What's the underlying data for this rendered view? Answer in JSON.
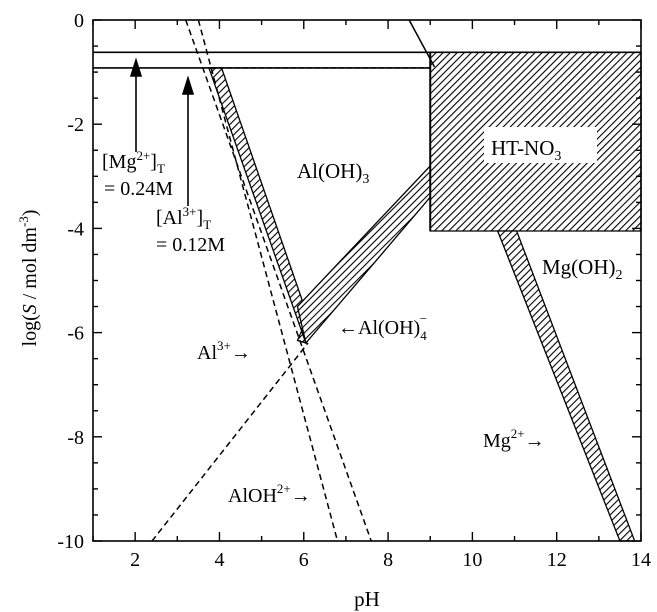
{
  "chart_data": {
    "type": "line",
    "xlabel": "pH",
    "ylabel_parts": [
      "log(",
      "S",
      " / mol dm",
      "-3",
      ")"
    ],
    "xlim": [
      1,
      14
    ],
    "ylim": [
      -10,
      0
    ],
    "x_ticks": [
      2,
      4,
      6,
      8,
      10,
      12,
      14
    ],
    "y_ticks": [
      0,
      -2,
      -4,
      -6,
      -8,
      -10
    ],
    "grid": false,
    "horizontal_lines": [
      {
        "name": "[Mg2+]T",
        "y": -0.62,
        "x_range": [
          1,
          14
        ],
        "style": "solid"
      },
      {
        "name": "[Al3+]T",
        "y": -0.92,
        "x_range": [
          1,
          9
        ],
        "style": "solid"
      }
    ],
    "dashed_segments": [
      {
        "points": [
          [
            3.8,
            -0.92
          ],
          [
            9.0,
            -0.92
          ]
        ]
      }
    ],
    "curves": [
      {
        "name": "Al3+",
        "style": "dashed",
        "points": [
          [
            3.2,
            0
          ],
          [
            7.6,
            -10
          ]
        ]
      },
      {
        "name": "AlOH2+",
        "style": "dashed",
        "points": [
          [
            3.5,
            0
          ],
          [
            6.8,
            -10
          ]
        ]
      },
      {
        "name": "Al(OH)4-",
        "style": "dashed",
        "points": [
          [
            2.4,
            -10
          ],
          [
            6.1,
            -6.2
          ]
        ]
      },
      {
        "name": "Mg2+",
        "style": "solid",
        "points": [
          [
            8.5,
            0
          ],
          [
            9.1,
            -0.9
          ]
        ]
      }
    ],
    "regions": [
      {
        "name": "Al(OH)3 boundary left",
        "fill": "hatch",
        "points": [
          [
            3.75,
            -0.92
          ],
          [
            4.05,
            -0.92
          ],
          [
            6.1,
            -5.7
          ],
          [
            5.85,
            -6.15
          ],
          [
            6.05,
            -6.2
          ]
        ]
      },
      {
        "name": "Al(OH)3 boundary right",
        "fill": "hatch",
        "points": [
          [
            5.85,
            -5.5
          ],
          [
            9.0,
            -2.8
          ],
          [
            9.0,
            -3.4
          ],
          [
            6.05,
            -6.2
          ]
        ]
      },
      {
        "name": "HT-NO3",
        "fill": "hatch",
        "points": [
          [
            9.0,
            -0.62
          ],
          [
            14,
            -0.62
          ],
          [
            14,
            -4.05
          ],
          [
            9.0,
            -4.05
          ]
        ]
      },
      {
        "name": "Mg(OH)2 boundary",
        "fill": "hatch",
        "points": [
          [
            10.6,
            -4.05
          ],
          [
            11.05,
            -4.05
          ],
          [
            13.85,
            -10
          ],
          [
            13.5,
            -10
          ]
        ]
      }
    ],
    "region_outline": [
      [
        9.0,
        -0.62
      ],
      [
        9.0,
        -4.05
      ]
    ],
    "annotations": {
      "mg_total_line1_pre": "[Mg",
      "mg_total_line1_sup": "2+",
      "mg_total_line1_post": "]",
      "mg_total_line1_sub": "T",
      "mg_total_line2": "= 0.24M",
      "al_total_line1_pre": "[Al",
      "al_total_line1_sup": "3+",
      "al_total_line1_post": "]",
      "al_total_line1_sub": "T",
      "al_total_line2": "= 0.12M",
      "aloh3_pre": "Al(OH)",
      "aloh3_sub": "3",
      "ht_pre": "HT-NO",
      "ht_sub": "3",
      "mgoh2_pre": "Mg(OH)",
      "mgoh2_sub": "2",
      "al3_pre": "Al",
      "al3_sup": "3+",
      "aloh4_pre": "Al(OH)",
      "aloh4_sub": "4",
      "aloh4_sup": "−",
      "aloh2_pre": "AlOH",
      "aloh2_sup": "2+",
      "mg2_pre": "Mg",
      "mg2_sup": "2+",
      "arrow_right": "→",
      "arrow_left": "←"
    }
  }
}
